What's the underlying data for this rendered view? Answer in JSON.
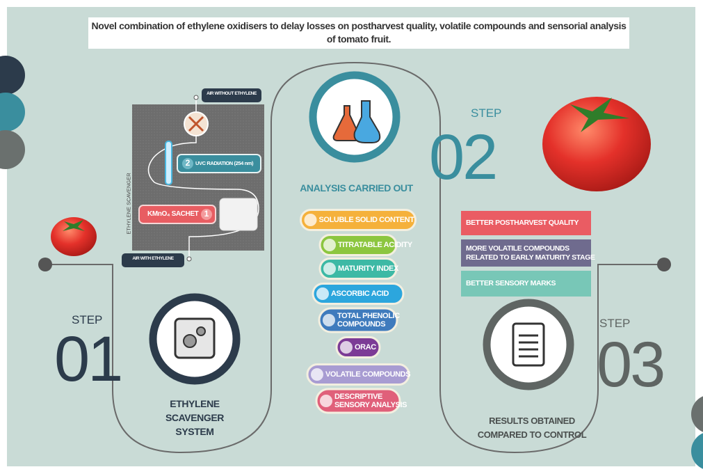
{
  "title": "Novel combination of ethylene oxidisers to delay losses on postharvest quality, volatile compounds and sensorial analysis of tomato fruit.",
  "step1": {
    "label": "STEP",
    "number": "01",
    "caption": [
      "ETHYLENE",
      "SCAVENGER",
      "SYSTEM"
    ]
  },
  "scavenger": {
    "side_label": "ETHYLENE SCAVENGER",
    "air_out": "AIR WITHOUT ETHYLENE",
    "air_in": "AIR WITH ETHYLENE",
    "uvc": {
      "number": "2",
      "text": "UVC RADIATION (254 nm)"
    },
    "kmno4": {
      "text": "KMnO₄ SACHET",
      "number": "1"
    }
  },
  "step2": {
    "label": "STEP",
    "number": "02",
    "caption": "ANALYSIS CARRIED OUT"
  },
  "analyses": [
    [
      "SOLUBLE SOLID CONTENT"
    ],
    [
      "TITRATABLE ACIDITY"
    ],
    [
      "MATURITY INDEX"
    ],
    [
      "ASCORBIC ACID"
    ],
    [
      "TOTAL PHENOLIC",
      "COMPOUNDS"
    ],
    [
      "ORAC"
    ],
    [
      "VOLATILE COMPOUNDS"
    ],
    [
      "DESCRIPTIVE",
      "SENSORY ANALYSIS"
    ]
  ],
  "step3": {
    "label": "STEP",
    "number": "03",
    "caption": [
      "RESULTS OBTAINED",
      "COMPARED TO CONTROL"
    ]
  },
  "results": [
    [
      "BETTER POSTHARVEST QUALITY"
    ],
    [
      "MORE VOLATILE COMPOUNDS",
      "RELATED TO EARLY MATURITY STAGE"
    ],
    [
      "BETTER SENSORY MARKS"
    ]
  ]
}
